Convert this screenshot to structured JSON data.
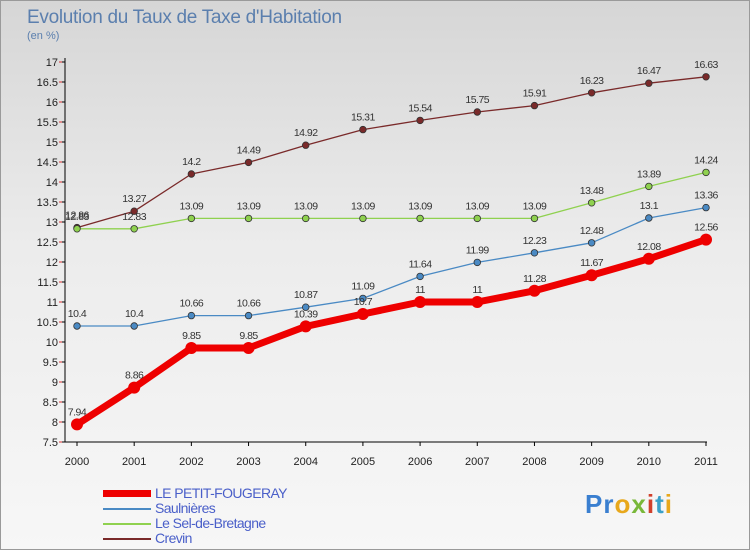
{
  "header": {
    "title": "Evolution du Taux de Taxe d'Habitation",
    "subtitle": "(en %)"
  },
  "logo": {
    "text": "Proxiti",
    "letters": [
      {
        "char": "P",
        "color": "#3a7fd0"
      },
      {
        "char": "r",
        "color": "#3a7fd0"
      },
      {
        "char": "o",
        "color": "#e8a81c"
      },
      {
        "char": "x",
        "color": "#79b83a"
      },
      {
        "char": "i",
        "color": "#d0402c"
      },
      {
        "char": "t",
        "color": "#3aa0c8"
      },
      {
        "char": "i",
        "color": "#e8a81c"
      }
    ]
  },
  "chart_data": {
    "type": "line",
    "title": "Evolution du Taux de Taxe d'Habitation",
    "ylabel": "(en %)",
    "xlabel": "",
    "x": [
      "2000",
      "2001",
      "2002",
      "2003",
      "2004",
      "2005",
      "2006",
      "2007",
      "2008",
      "2009",
      "2010",
      "2011"
    ],
    "ylim": [
      7.5,
      17
    ],
    "yticks": [
      "7.5",
      "8",
      "8.5",
      "9",
      "9.5",
      "10",
      "10.5",
      "11",
      "11.5",
      "12",
      "12.5",
      "13",
      "13.5",
      "14",
      "14.5",
      "15",
      "15.5",
      "16",
      "16.5",
      "17"
    ],
    "grid": false,
    "legend_position": "bottom-left",
    "series": [
      {
        "name": "LE PETIT-FOUGERAY",
        "color": "#ee0000",
        "values": [
          7.94,
          8.86,
          9.85,
          9.85,
          10.39,
          10.7,
          11,
          11,
          11.28,
          11.67,
          12.08,
          12.56
        ],
        "labels": [
          "7.94",
          "8.86",
          "9.85",
          "9.85",
          "10.39",
          "10.7",
          "11",
          "11",
          "11.28",
          "11.67",
          "12.08",
          "12.56"
        ]
      },
      {
        "name": "Saulnières",
        "color": "#4a8ac4",
        "values": [
          10.4,
          10.4,
          10.66,
          10.66,
          10.87,
          11.09,
          11.64,
          11.99,
          12.23,
          12.48,
          13.1,
          13.36
        ],
        "labels": [
          "10.4",
          "10.4",
          "10.66",
          "10.66",
          "10.87",
          "11.09",
          "11.64",
          "11.99",
          "12.23",
          "12.48",
          "13.1",
          "13.36"
        ]
      },
      {
        "name": "Le Sel-de-Bretagne",
        "color": "#8fd14f",
        "values": [
          12.83,
          12.83,
          13.09,
          13.09,
          13.09,
          13.09,
          13.09,
          13.09,
          13.09,
          13.48,
          13.89,
          14.24
        ],
        "labels": [
          "12.83",
          "12.83",
          "13.09",
          "13.09",
          "13.09",
          "13.09",
          "13.09",
          "13.09",
          "13.09",
          "13.48",
          "13.89",
          "14.24"
        ]
      },
      {
        "name": "Crevin",
        "color": "#7a2a2a",
        "values": [
          12.86,
          13.27,
          14.2,
          14.49,
          14.92,
          15.31,
          15.54,
          15.75,
          15.91,
          16.23,
          16.47,
          16.63
        ],
        "labels": [
          "12.86",
          "13.27",
          "14.2",
          "14.49",
          "14.92",
          "15.31",
          "15.54",
          "15.75",
          "15.91",
          "16.23",
          "16.47",
          "16.63"
        ]
      }
    ]
  }
}
